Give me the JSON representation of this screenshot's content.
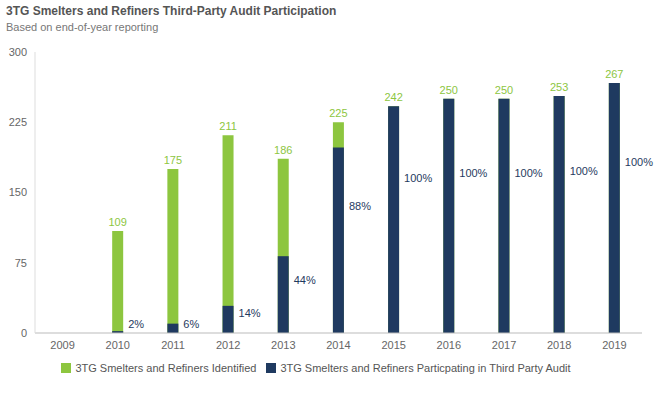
{
  "chart_data": {
    "type": "bar",
    "title": "3TG Smelters and Refiners Third-Party Audit Participation",
    "subtitle": "Based on end-of-year reporting",
    "categories": [
      "2009",
      "2010",
      "2011",
      "2012",
      "2013",
      "2014",
      "2015",
      "2016",
      "2017",
      "2018",
      "2019"
    ],
    "series": [
      {
        "name": "3TG Smelters and Refiners Identified",
        "color": "#8DC63F",
        "data_labels": true,
        "values": [
          null,
          109,
          175,
          211,
          186,
          225,
          242,
          250,
          250,
          253,
          267
        ]
      },
      {
        "name": "3TG Smelters and Refiners Particpating in Third Party Audit",
        "color": "#1F3A60",
        "values": [
          null,
          2,
          10,
          29,
          82,
          198,
          242,
          250,
          250,
          253,
          267
        ],
        "percent_labels": [
          null,
          "2%",
          "6%",
          "14%",
          "44%",
          "88%",
          "100%",
          "100%",
          "100%",
          "100%",
          "100%"
        ]
      }
    ],
    "ylim": [
      0,
      300
    ],
    "yticks": [
      0,
      75,
      150,
      225,
      300
    ],
    "grid": false,
    "legend": "bottom",
    "stacked": false
  }
}
